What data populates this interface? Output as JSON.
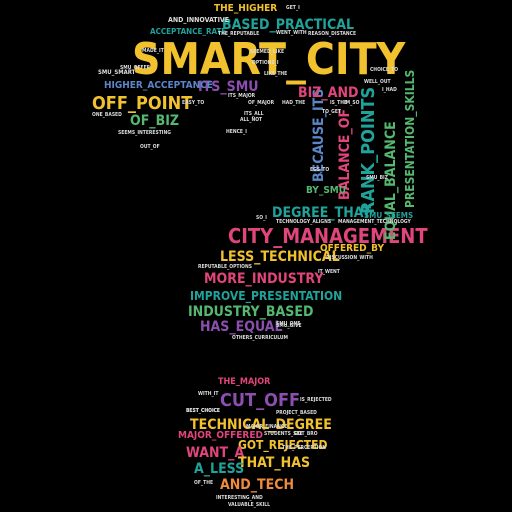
{
  "palette": {
    "yellow": "#f2c12e",
    "green": "#56b870",
    "teal": "#1fa39a",
    "pink": "#e0457b",
    "purple": "#8c4fb0",
    "blue": "#5b86c8",
    "orange": "#f08a3c",
    "white": "#dddddd"
  },
  "words": [
    {
      "text": "SMART_CITY",
      "color": "yellow"
    },
    {
      "text": "CITY_MANAGEMENT",
      "color": "pink"
    },
    {
      "text": "OFF_POINT",
      "color": "yellow"
    },
    {
      "text": "RANK_POINTS",
      "color": "teal"
    },
    {
      "text": "EQUAL_BALANCE",
      "color": "green"
    },
    {
      "text": "BALANCE_OF",
      "color": "pink"
    },
    {
      "text": "BECAUSE_ITS",
      "color": "blue"
    },
    {
      "text": "PRESENTATION_SKILLS",
      "color": "green"
    },
    {
      "text": "ITS_SMU",
      "color": "purple"
    },
    {
      "text": "BIZ_AND",
      "color": "pink"
    },
    {
      "text": "BASED_PRACTICAL",
      "color": "teal"
    },
    {
      "text": "THE_HIGHER",
      "color": "yellow"
    },
    {
      "text": "ACCEPTANCE_RATE",
      "color": "teal"
    },
    {
      "text": "AND_INNOVATIVE",
      "color": "white"
    },
    {
      "text": "HIGHER_ACCEPTANCE",
      "color": "blue"
    },
    {
      "text": "OF_BIZ",
      "color": "green"
    },
    {
      "text": "DEGREE_THAT",
      "color": "teal"
    },
    {
      "text": "LESS_TECHNICAL",
      "color": "yellow"
    },
    {
      "text": "MORE_INDUSTRY",
      "color": "pink"
    },
    {
      "text": "IMPROVE_PRESENTATION",
      "color": "teal"
    },
    {
      "text": "INDUSTRY_BASED",
      "color": "green"
    },
    {
      "text": "HAS_EQUAL",
      "color": "purple"
    },
    {
      "text": "OFFERED_BY",
      "color": "yellow"
    },
    {
      "text": "BY_SMU",
      "color": "green"
    },
    {
      "text": "SMU_SEEMS",
      "color": "teal"
    },
    {
      "text": "THE_MAJOR",
      "color": "pink"
    },
    {
      "text": "CUT_OFF",
      "color": "purple"
    },
    {
      "text": "TECHNICAL_DEGREE",
      "color": "yellow"
    },
    {
      "text": "MAJOR_OFFERED",
      "color": "pink"
    },
    {
      "text": "GOT_REJECTED",
      "color": "yellow"
    },
    {
      "text": "WANT_A",
      "color": "pink"
    },
    {
      "text": "THAT_HAS",
      "color": "yellow"
    },
    {
      "text": "A_LESS",
      "color": "teal"
    },
    {
      "text": "AND_TECH",
      "color": "orange"
    },
    {
      "text": "BEST_CHOICE",
      "color": "white"
    },
    {
      "text": "WITH_IT",
      "color": "white"
    },
    {
      "text": "OF_THE",
      "color": "white"
    },
    {
      "text": "INTERESTING_AND",
      "color": "white"
    },
    {
      "text": "VALUABLE_SKILL",
      "color": "white"
    },
    {
      "text": "SMU_SMART",
      "color": "white"
    },
    {
      "text": "LIKE_THE",
      "color": "white"
    },
    {
      "text": "HAD_THE",
      "color": "white"
    },
    {
      "text": "SEEMS_INTERESTING",
      "color": "white"
    },
    {
      "text": "OUT_OF",
      "color": "white"
    },
    {
      "text": "MADE_IT",
      "color": "white"
    },
    {
      "text": "WENT_WITH",
      "color": "white"
    },
    {
      "text": "SEEMED_LIKE",
      "color": "white"
    },
    {
      "text": "REASON_DISTANCE",
      "color": "white"
    },
    {
      "text": "CHOICE_TO",
      "color": "white"
    },
    {
      "text": "WELL_OUT",
      "color": "white"
    },
    {
      "text": "EASY_TO",
      "color": "white"
    },
    {
      "text": "SMU_OFFER",
      "color": "white"
    },
    {
      "text": "GET_I",
      "color": "white"
    },
    {
      "text": "IS_THE",
      "color": "white"
    },
    {
      "text": "THE_REPUTABLE",
      "color": "white"
    },
    {
      "text": "OPTIONS_I",
      "color": "white"
    },
    {
      "text": "TO_GET",
      "color": "white"
    },
    {
      "text": "IM_SO",
      "color": "white"
    },
    {
      "text": "I_HAD",
      "color": "white"
    },
    {
      "text": "SO_I",
      "color": "white"
    },
    {
      "text": "HENCE_I",
      "color": "white"
    },
    {
      "text": "DISCUSSION_WITH",
      "color": "white"
    },
    {
      "text": "REPUTABLE_OPTIONS",
      "color": "white"
    },
    {
      "text": "IT_WENT",
      "color": "white"
    },
    {
      "text": "SMU_GIVE",
      "color": "white"
    },
    {
      "text": "OTHERS_CURRICULUM",
      "color": "white"
    },
    {
      "text": "OF_MAJOR",
      "color": "white"
    },
    {
      "text": "ITS_ALL",
      "color": "white"
    },
    {
      "text": "ITS_MAJOR",
      "color": "white"
    },
    {
      "text": "ALL_NOT",
      "color": "white"
    },
    {
      "text": "EGS_TO",
      "color": "white"
    },
    {
      "text": "SMU_BIZ",
      "color": "white"
    },
    {
      "text": "TECHNOLOGY_ALIGNS",
      "color": "white"
    },
    {
      "text": "MANAGEMENT_TECHNOLOGY",
      "color": "white"
    },
    {
      "text": "BEST_CHOICE",
      "color": "white"
    },
    {
      "text": "SMU_ONE",
      "color": "white"
    },
    {
      "text": "IS_REJECTED",
      "color": "white"
    },
    {
      "text": "ONE_BASED",
      "color": "white"
    },
    {
      "text": "MAJOR_FINANCE",
      "color": "white"
    },
    {
      "text": "PROJECT_BASED",
      "color": "white"
    },
    {
      "text": "GOT_BRO",
      "color": "white"
    },
    {
      "text": "STUDENTS_SEE",
      "color": "white"
    },
    {
      "text": "THE_PERCEPTION",
      "color": "white"
    }
  ]
}
